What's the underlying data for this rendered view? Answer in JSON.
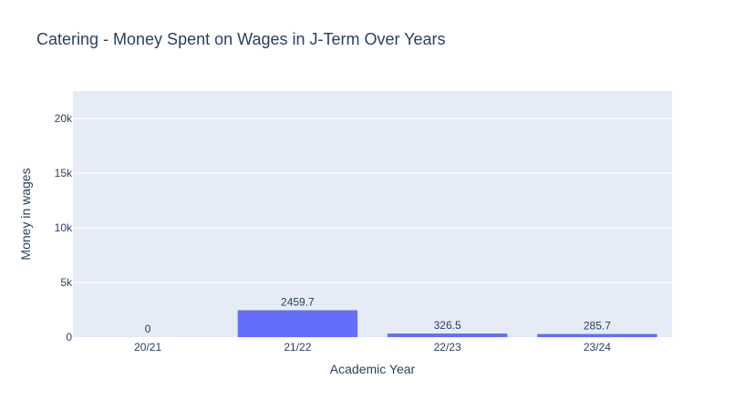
{
  "chart_data": {
    "type": "bar",
    "title": "Catering - Money Spent on Wages in J-Term Over Years",
    "xlabel": "Academic Year",
    "ylabel": "Money in wages",
    "categories": [
      "20/21",
      "21/22",
      "22/23",
      "23/24"
    ],
    "values": [
      0,
      2459.7,
      326.5,
      285.7
    ],
    "data_labels": [
      "0",
      "2459.7",
      "326.5",
      "285.7"
    ],
    "ylim": [
      0,
      22500
    ],
    "yticks": [
      0,
      5000,
      10000,
      15000,
      20000
    ],
    "ytick_labels": [
      "0",
      "5k",
      "10k",
      "15k",
      "20k"
    ],
    "grid": true,
    "colors": {
      "bar": "#636efa",
      "plot_bg": "#e5ecf6",
      "grid": "#ffffff",
      "text": "#2a3f5f"
    }
  }
}
